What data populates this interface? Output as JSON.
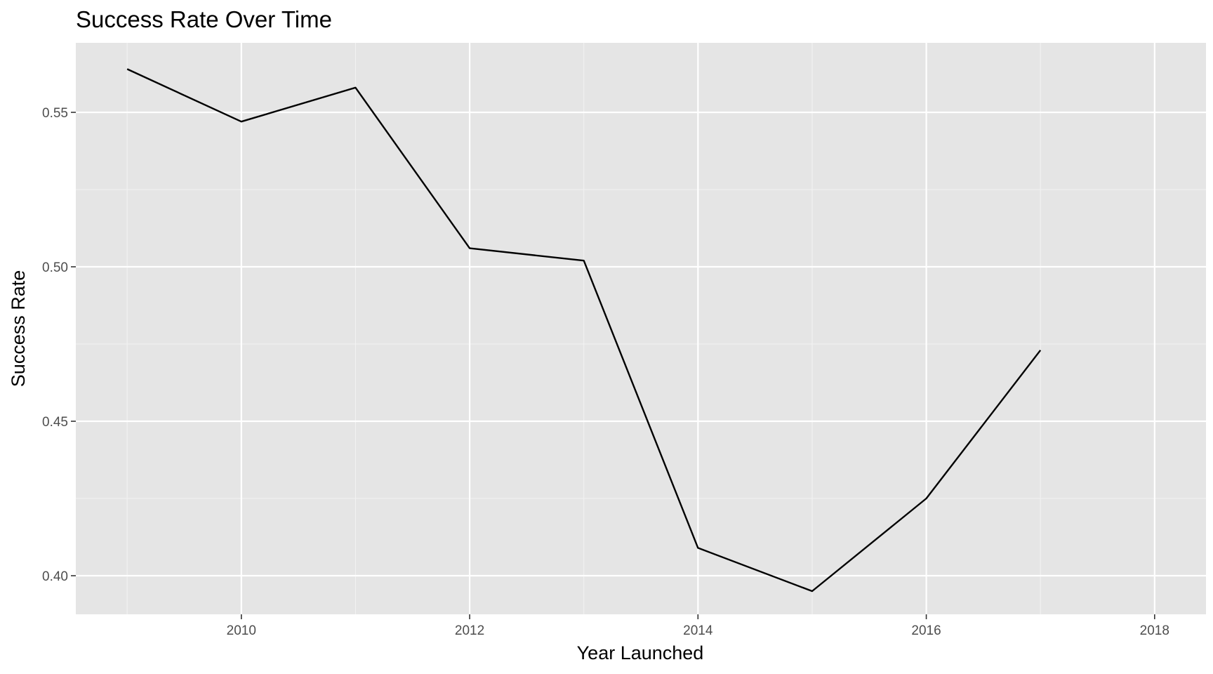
{
  "chart_data": {
    "type": "line",
    "title": "Success Rate Over Time",
    "xlabel": "Year Launched",
    "ylabel": "Success Rate",
    "x": [
      2009,
      2010,
      2011,
      2012,
      2013,
      2014,
      2015,
      2016,
      2017
    ],
    "series": [
      {
        "values": [
          0.564,
          0.547,
          0.558,
          0.506,
          0.502,
          0.409,
          0.395,
          0.425,
          0.473
        ],
        "color": "#000000"
      }
    ],
    "xlim": [
      2008.55,
      2018.45
    ],
    "ylim": [
      0.3875,
      0.5725
    ],
    "x_ticks": [
      {
        "value": 2010,
        "label": "2010"
      },
      {
        "value": 2012,
        "label": "2012"
      },
      {
        "value": 2014,
        "label": "2014"
      },
      {
        "value": 2016,
        "label": "2016"
      },
      {
        "value": 2018,
        "label": "2018"
      }
    ],
    "y_ticks": [
      {
        "value": 0.4,
        "label": "0.40"
      },
      {
        "value": 0.45,
        "label": "0.45"
      },
      {
        "value": 0.5,
        "label": "0.50"
      },
      {
        "value": 0.55,
        "label": "0.55"
      }
    ],
    "x_minor_ticks": [
      2009,
      2011,
      2013,
      2015,
      2017
    ],
    "y_minor_ticks": [
      0.425,
      0.475,
      0.525
    ],
    "grid": true,
    "legend": "none",
    "theme": {
      "panel_background": "#e5e5e5",
      "grid_color": "#ffffff",
      "tick_label_color": "#4d4d4d"
    }
  }
}
